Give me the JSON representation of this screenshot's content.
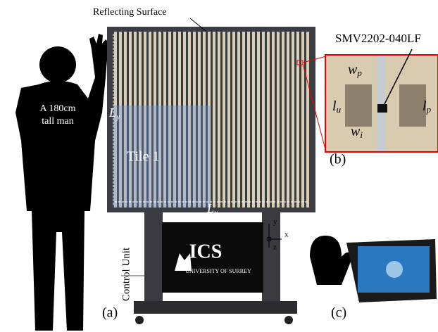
{
  "labels": {
    "reflecting_surface": "Reflecting Surface",
    "diode": "SMV2202-040LF",
    "man": [
      "A 180cm",
      "tall man"
    ],
    "ly": {
      "base": "L",
      "sub": "y"
    },
    "lx": {
      "base": "L",
      "sub": "x"
    },
    "tile": "Tile 1",
    "wp": {
      "base": "w",
      "sub": "p"
    },
    "wi": {
      "base": "w",
      "sub": "i"
    },
    "lu": {
      "base": "l",
      "sub": "u"
    },
    "lp": {
      "base": "l",
      "sub": "p"
    },
    "control_unit": "Control Unit",
    "logo": "ICS",
    "university": "UNIVERSITY OF SURREY",
    "axes": {
      "x": "x",
      "y": "y",
      "z": "z"
    },
    "panels": {
      "a": "(a)",
      "b": "(b)",
      "c": "(c)"
    }
  }
}
